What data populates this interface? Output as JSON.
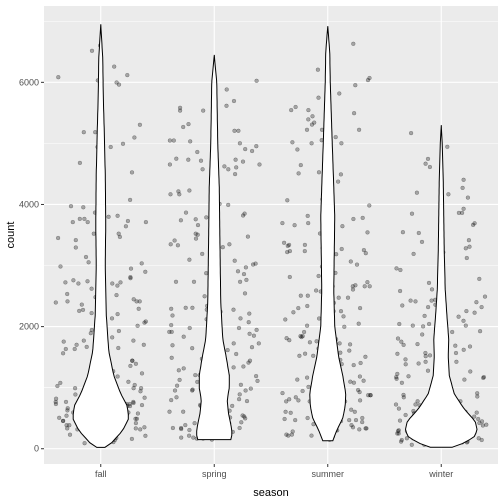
{
  "chart_data": {
    "type": "violin",
    "xlabel": "season",
    "ylabel": "count",
    "categories": [
      "fall",
      "spring",
      "summer",
      "winter"
    ],
    "y_ticks": [
      0,
      2000,
      4000,
      6000
    ],
    "ylim": [
      -250,
      7250
    ],
    "grid": true,
    "panel_background": "#ebebeb",
    "grid_color": "#ffffff",
    "point_color": "#000000",
    "point_opacity": 0.3,
    "violin_fill": "#ffffff",
    "violin_stroke": "#000000",
    "violins": [
      {
        "category": "fall",
        "min": 22,
        "max": 6950,
        "profile": [
          [
            22,
            0.08
          ],
          [
            100,
            0.22
          ],
          [
            300,
            0.44
          ],
          [
            500,
            0.56
          ],
          [
            700,
            0.53
          ],
          [
            900,
            0.4
          ],
          [
            1200,
            0.26
          ],
          [
            1600,
            0.16
          ],
          [
            2200,
            0.11
          ],
          [
            3000,
            0.09
          ],
          [
            3700,
            0.1
          ],
          [
            4500,
            0.09
          ],
          [
            5200,
            0.07
          ],
          [
            5800,
            0.05
          ],
          [
            6400,
            0.04
          ],
          [
            6950,
            0.0
          ]
        ]
      },
      {
        "category": "spring",
        "min": 150,
        "max": 6450,
        "profile": [
          [
            150,
            0.33
          ],
          [
            250,
            0.36
          ],
          [
            400,
            0.33
          ],
          [
            600,
            0.28
          ],
          [
            800,
            0.26
          ],
          [
            1000,
            0.3
          ],
          [
            1200,
            0.3
          ],
          [
            1500,
            0.24
          ],
          [
            1800,
            0.17
          ],
          [
            2400,
            0.13
          ],
          [
            3000,
            0.12
          ],
          [
            3600,
            0.11
          ],
          [
            4300,
            0.1
          ],
          [
            5000,
            0.07
          ],
          [
            5500,
            0.06
          ],
          [
            6000,
            0.05
          ],
          [
            6450,
            0.0
          ]
        ]
      },
      {
        "category": "summer",
        "min": 130,
        "max": 6920,
        "profile": [
          [
            130,
            0.1
          ],
          [
            300,
            0.18
          ],
          [
            500,
            0.3
          ],
          [
            700,
            0.35
          ],
          [
            900,
            0.36
          ],
          [
            1200,
            0.3
          ],
          [
            1500,
            0.22
          ],
          [
            2000,
            0.14
          ],
          [
            2600,
            0.12
          ],
          [
            3200,
            0.13
          ],
          [
            3800,
            0.14
          ],
          [
            4300,
            0.12
          ],
          [
            5000,
            0.09
          ],
          [
            5500,
            0.07
          ],
          [
            6000,
            0.05
          ],
          [
            6500,
            0.04
          ],
          [
            6920,
            0.0
          ]
        ]
      },
      {
        "category": "winter",
        "min": 25,
        "max": 5300,
        "profile": [
          [
            25,
            0.22
          ],
          [
            100,
            0.48
          ],
          [
            200,
            0.66
          ],
          [
            300,
            0.72
          ],
          [
            450,
            0.68
          ],
          [
            650,
            0.46
          ],
          [
            900,
            0.26
          ],
          [
            1200,
            0.16
          ],
          [
            1500,
            0.14
          ],
          [
            1800,
            0.15
          ],
          [
            2100,
            0.12
          ],
          [
            2600,
            0.08
          ],
          [
            3200,
            0.06
          ],
          [
            3800,
            0.05
          ],
          [
            4400,
            0.04
          ],
          [
            5000,
            0.02
          ],
          [
            5300,
            0.0
          ]
        ]
      }
    ]
  }
}
